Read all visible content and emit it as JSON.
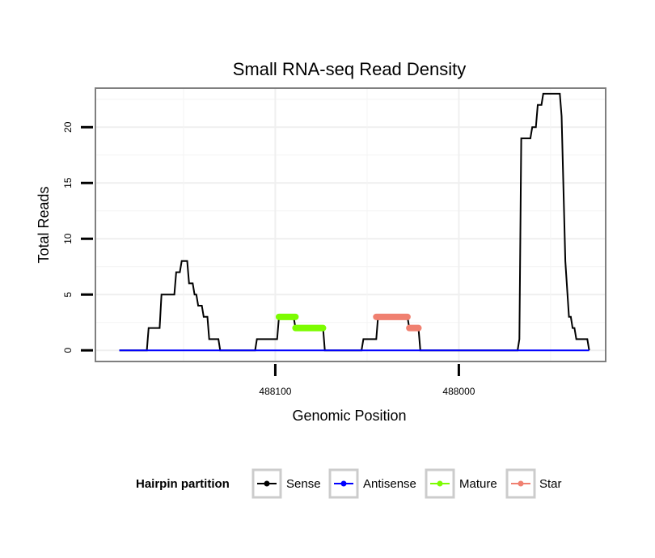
{
  "chart_data": {
    "type": "line",
    "title": "Small RNA-seq Read Density",
    "xlabel": "Genomic Position",
    "ylabel": "Total Reads",
    "x_reversed": true,
    "xlim": [
      488198,
      487920
    ],
    "ylim": [
      -1,
      23.5
    ],
    "xticks": [
      488100,
      488000
    ],
    "xtick_labels": [
      "488100",
      "488000"
    ],
    "yticks": [
      0,
      5,
      10,
      15,
      20
    ],
    "ytick_labels": [
      "0",
      "5",
      "10",
      "15",
      "20"
    ],
    "grid": true,
    "legend": {
      "title": "Hairpin partition",
      "position": "bottom",
      "entries": [
        {
          "name": "Sense",
          "color": "#000000"
        },
        {
          "name": "Antisense",
          "color": "#0000ff"
        },
        {
          "name": "Mature",
          "color": "#7cfc00"
        },
        {
          "name": "Star",
          "color": "#f08070"
        }
      ]
    },
    "series": [
      {
        "name": "Sense",
        "color": "#000000",
        "points": [
          [
            488185,
            0
          ],
          [
            488170,
            0
          ],
          [
            488169,
            2
          ],
          [
            488163,
            2
          ],
          [
            488162,
            5
          ],
          [
            488155,
            5
          ],
          [
            488154,
            7
          ],
          [
            488152,
            7
          ],
          [
            488151,
            8
          ],
          [
            488148,
            8
          ],
          [
            488147,
            6
          ],
          [
            488145,
            6
          ],
          [
            488144,
            5
          ],
          [
            488143,
            5
          ],
          [
            488142,
            4
          ],
          [
            488140,
            4
          ],
          [
            488139,
            3
          ],
          [
            488137,
            3
          ],
          [
            488136,
            1
          ],
          [
            488131,
            1
          ],
          [
            488130,
            0
          ],
          [
            488111,
            0
          ],
          [
            488110,
            1
          ],
          [
            488099,
            1
          ],
          [
            488098,
            3
          ],
          [
            488090,
            3
          ],
          [
            488089,
            2
          ],
          [
            488074,
            2
          ],
          [
            488073,
            0
          ],
          [
            488053,
            0
          ],
          [
            488052,
            1
          ],
          [
            488045,
            1
          ],
          [
            488044,
            3
          ],
          [
            488028,
            3
          ],
          [
            488027,
            2
          ],
          [
            488022,
            2
          ],
          [
            488021,
            0
          ],
          [
            487968,
            0
          ],
          [
            487967,
            1
          ],
          [
            487966,
            19
          ],
          [
            487961,
            19
          ],
          [
            487960,
            20
          ],
          [
            487958,
            20
          ],
          [
            487957,
            22
          ],
          [
            487955,
            22
          ],
          [
            487954,
            23
          ],
          [
            487945,
            23
          ],
          [
            487944,
            21
          ],
          [
            487942,
            8
          ],
          [
            487940,
            3
          ],
          [
            487939,
            3
          ],
          [
            487938,
            2
          ],
          [
            487937,
            2
          ],
          [
            487936,
            1
          ],
          [
            487930,
            1
          ],
          [
            487929,
            0
          ]
        ]
      },
      {
        "name": "Antisense",
        "color": "#0000ff",
        "points": [
          [
            488185,
            0
          ],
          [
            487929,
            0
          ]
        ]
      },
      {
        "name": "Mature",
        "color": "#7cfc00",
        "segments": [
          {
            "x_start": 488098,
            "x_end": 488089,
            "value": 3
          },
          {
            "x_start": 488089,
            "x_end": 488074,
            "value": 2
          }
        ]
      },
      {
        "name": "Star",
        "color": "#f08070",
        "segments": [
          {
            "x_start": 488045,
            "x_end": 488028,
            "value": 3
          },
          {
            "x_start": 488027,
            "x_end": 488022,
            "value": 2
          }
        ]
      }
    ]
  }
}
